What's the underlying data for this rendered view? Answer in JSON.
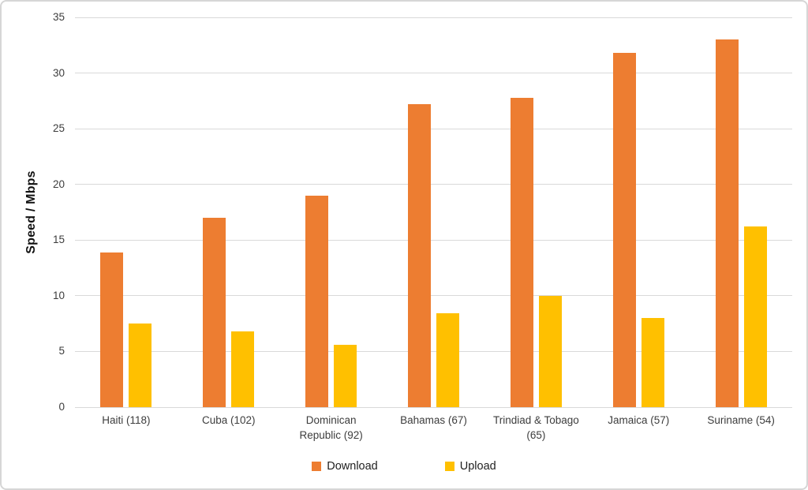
{
  "figure": {
    "background": "#FFFFFF",
    "border_color": "#D6D6D6"
  },
  "chart_data": {
    "type": "bar",
    "title": "",
    "xlabel": "",
    "ylabel": "Speed / Mbps",
    "ylim": [
      0,
      35
    ],
    "yticks": [
      0,
      5,
      10,
      15,
      20,
      25,
      30,
      35
    ],
    "grid": true,
    "gridline_color": "#D9D9D9",
    "tick_label_color": "#3D3D3D",
    "legend_position": "bottom",
    "categories": [
      "Haiti (118)",
      "Cuba (102)",
      "Dominican Republic (92)",
      "Bahamas (67)",
      "Trindiad & Tobago (65)",
      "Jamaica (57)",
      "Suriname (54)"
    ],
    "series": [
      {
        "name": "Download",
        "color": "#ED7D31",
        "values": [
          13.9,
          17.0,
          19.0,
          27.2,
          27.8,
          31.8,
          33.0
        ]
      },
      {
        "name": "Upload",
        "color": "#FFC000",
        "values": [
          7.5,
          6.8,
          5.6,
          8.4,
          10.0,
          8.0,
          16.2
        ]
      }
    ]
  }
}
